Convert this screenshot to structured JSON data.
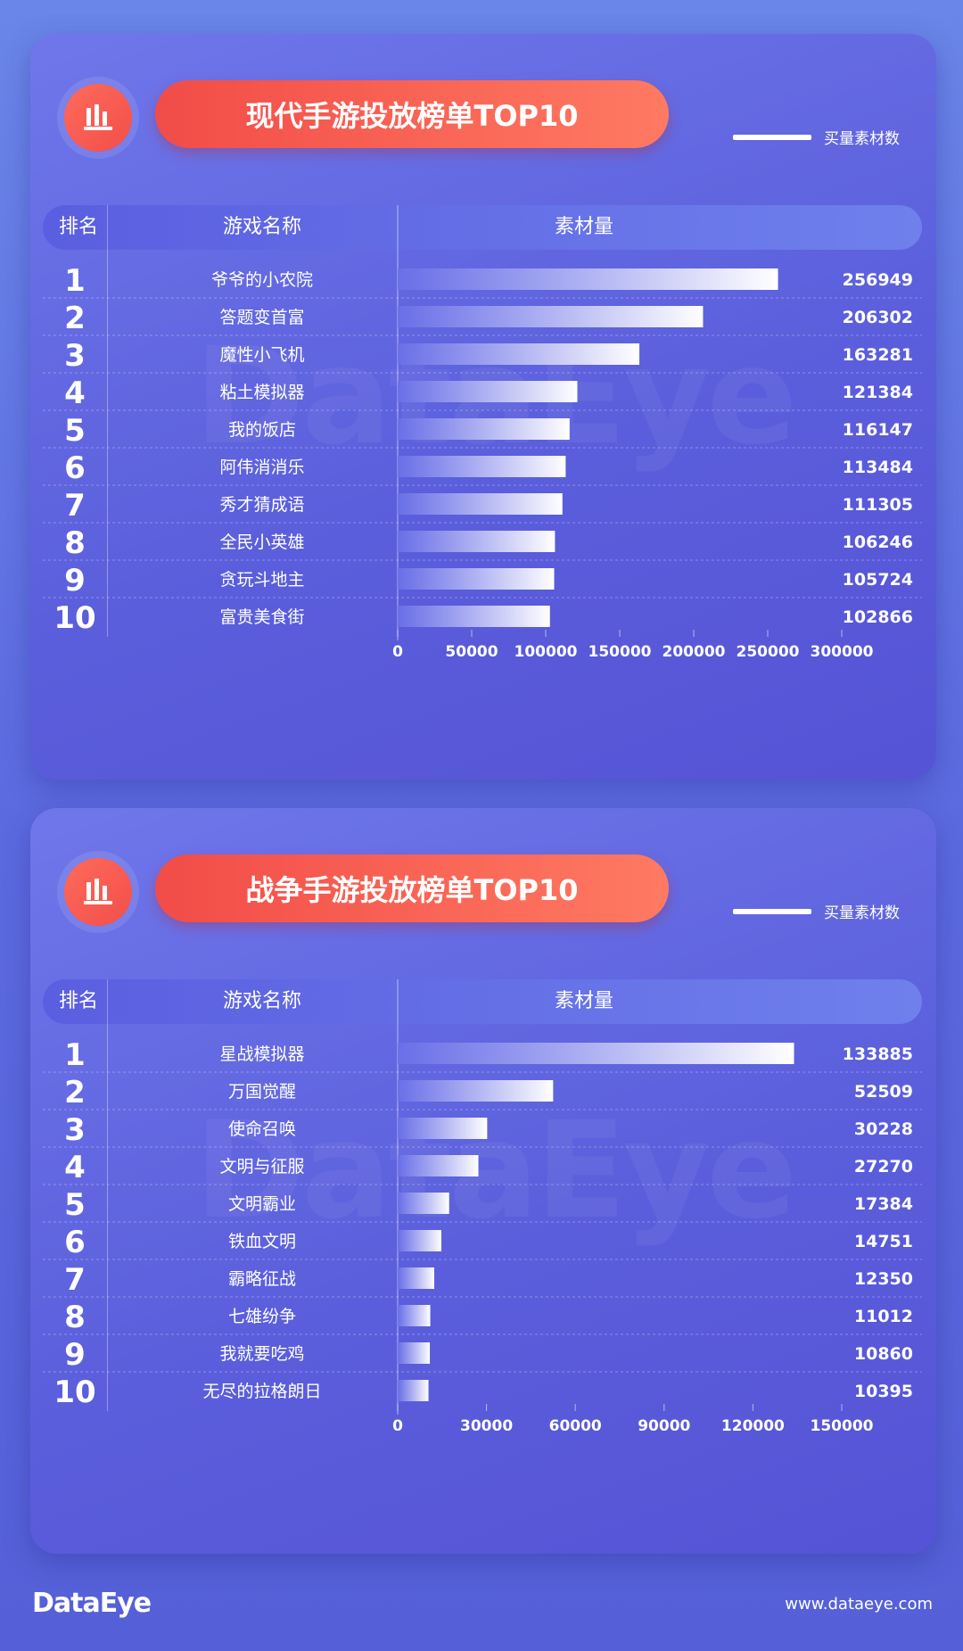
{
  "legend_label": "买量素材数",
  "header": {
    "rank": "排名",
    "name": "游戏名称",
    "value": "素材量"
  },
  "watermark": "DataEye",
  "footer": {
    "logo": "DataEye",
    "url": "www.dataeye.com"
  },
  "colors": {
    "accent": "#f24c48",
    "bar_start": "#6a70e8",
    "bar_end": "#ffffff"
  },
  "chart_data": [
    {
      "type": "bar",
      "title": "现代手游投放榜单TOP10",
      "legend": "买量素材数",
      "ranks": [
        "1",
        "2",
        "3",
        "4",
        "5",
        "6",
        "7",
        "8",
        "9",
        "10"
      ],
      "categories": [
        "爷爷的小农院",
        "答题变首富",
        "魔性小飞机",
        "粘土模拟器",
        "我的饭店",
        "阿伟消消乐",
        "秀才猜成语",
        "全民小英雄",
        "贪玩斗地主",
        "富贵美食街"
      ],
      "values": [
        256949,
        206302,
        163281,
        121384,
        116147,
        113484,
        111305,
        106246,
        105724,
        102866
      ],
      "xlim": [
        0,
        300000
      ],
      "ticks": [
        0,
        50000,
        100000,
        150000,
        200000,
        250000,
        300000
      ]
    },
    {
      "type": "bar",
      "title": "战争手游投放榜单TOP10",
      "legend": "买量素材数",
      "ranks": [
        "1",
        "2",
        "3",
        "4",
        "5",
        "6",
        "7",
        "8",
        "9",
        "10"
      ],
      "categories": [
        "星战模拟器",
        "万国觉醒",
        "使命召唤",
        "文明与征服",
        "文明霸业",
        "铁血文明",
        "霸略征战",
        "七雄纷争",
        "我就要吃鸡",
        "无尽的拉格朗日"
      ],
      "values": [
        133885,
        52509,
        30228,
        27270,
        17384,
        14751,
        12350,
        11012,
        10860,
        10395
      ],
      "xlim": [
        0,
        150000
      ],
      "ticks": [
        0,
        30000,
        60000,
        90000,
        120000,
        150000
      ]
    }
  ]
}
